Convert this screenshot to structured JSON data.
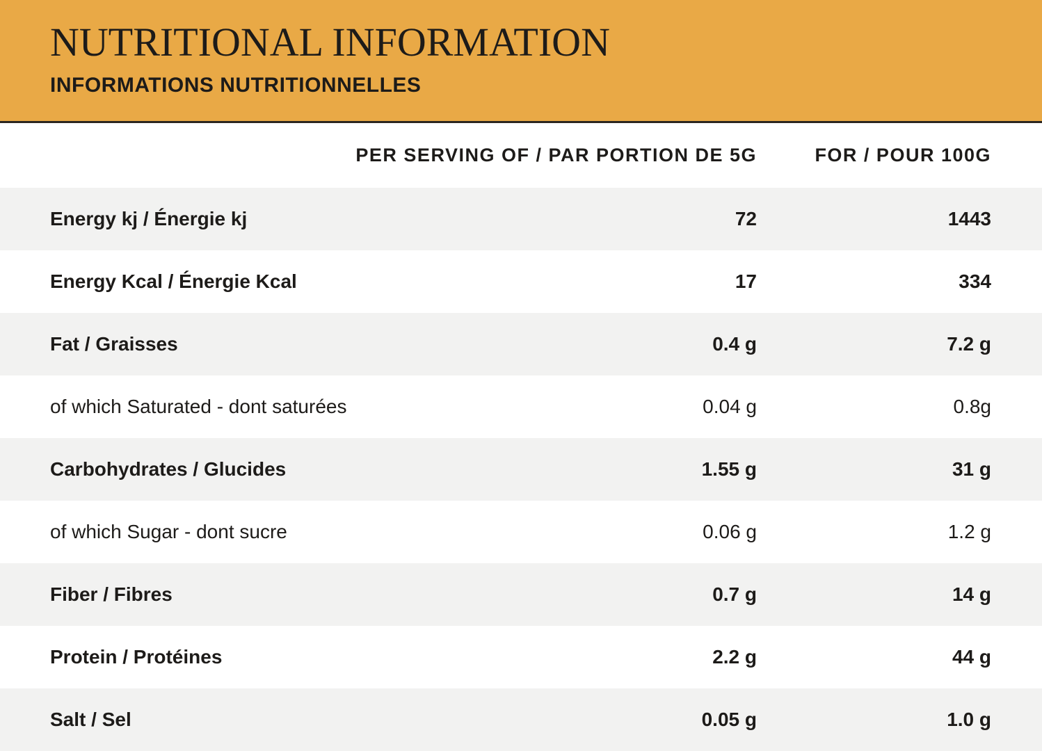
{
  "header": {
    "title": "NUTRITIONAL INFORMATION",
    "subtitle": "INFORMATIONS NUTRITIONNELLES",
    "bg_color": "#E9A946",
    "underline_color": "#2B2620"
  },
  "colors": {
    "text": "#1D1B19",
    "row_odd": "#F2F2F1",
    "row_even": "#FFFFFF"
  },
  "table": {
    "columns": {
      "serving": "PER SERVING OF / PAR PORTION DE 5G",
      "per100": "FOR / POUR 100G"
    },
    "rows": [
      {
        "label": "Energy kj / Énergie kj",
        "serving": "72",
        "per100": "1443",
        "bold": true
      },
      {
        "label": "Energy Kcal / Énergie Kcal",
        "serving": "17",
        "per100": "334",
        "bold": true
      },
      {
        "label": "Fat / Graisses",
        "serving": "0.4 g",
        "per100": "7.2 g",
        "bold": true
      },
      {
        "label": "of which Saturated - dont saturées",
        "serving": "0.04 g",
        "per100": "0.8g",
        "bold": false
      },
      {
        "label": "Carbohydrates / Glucides",
        "serving": "1.55 g",
        "per100": "31 g",
        "bold": true
      },
      {
        "label": "of which Sugar - dont sucre",
        "serving": "0.06 g",
        "per100": "1.2 g",
        "bold": false
      },
      {
        "label": "Fiber / Fibres",
        "serving": "0.7 g",
        "per100": "14 g",
        "bold": true
      },
      {
        "label": "Protein / Protéines",
        "serving": "2.2 g",
        "per100": "44 g",
        "bold": true
      },
      {
        "label": "Salt / Sel",
        "serving": "0.05 g",
        "per100": "1.0 g",
        "bold": true
      }
    ]
  }
}
